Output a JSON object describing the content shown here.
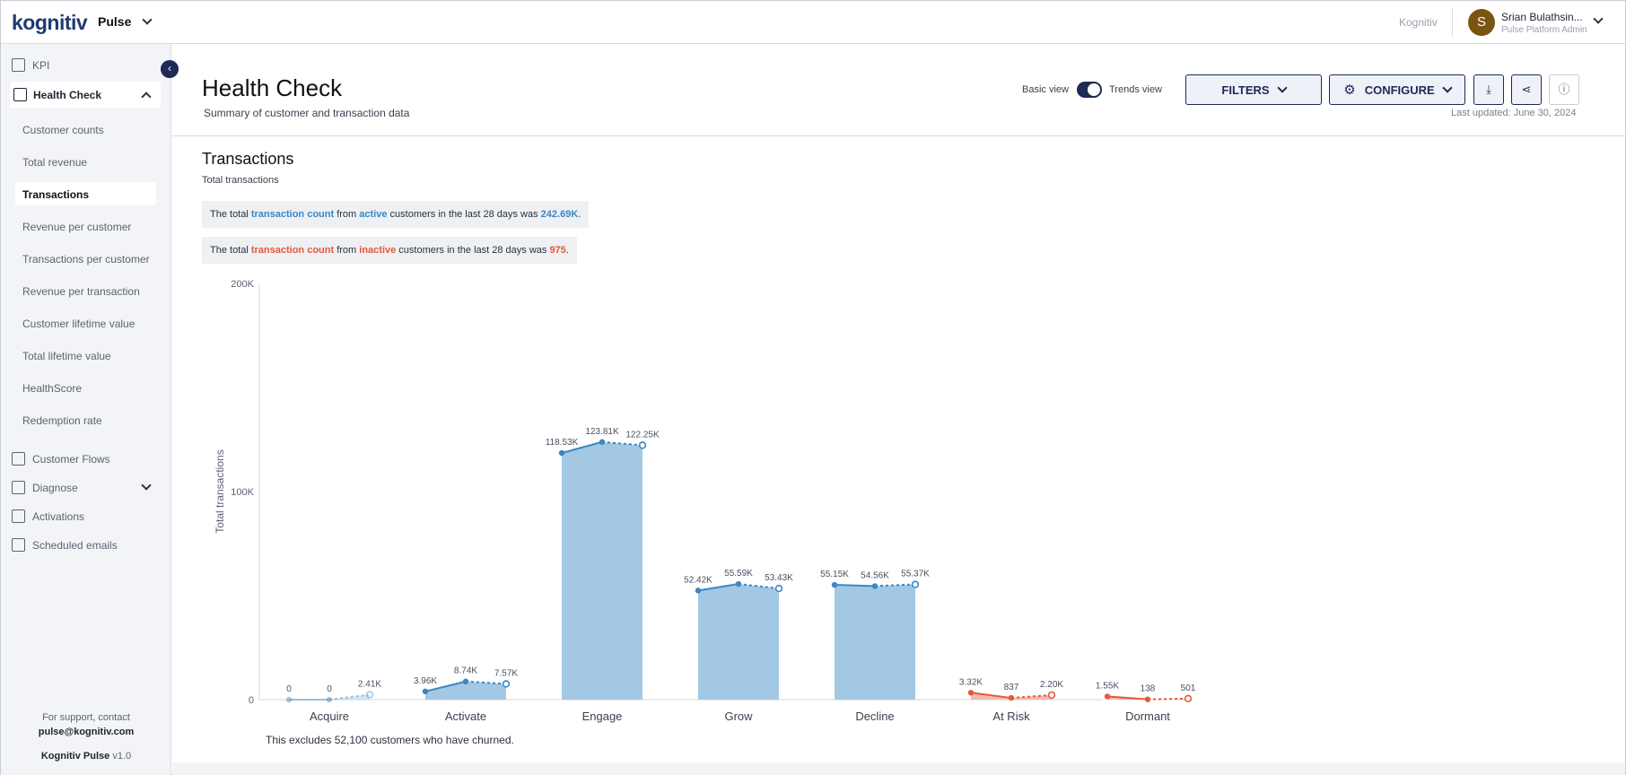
{
  "app": {
    "logo_text": "kognitiv",
    "product": "Pulse",
    "org_link": "Kognitiv",
    "user": {
      "initial": "S",
      "name": "Srian Bulathsin...",
      "role": "Pulse Platform Admin"
    }
  },
  "sidebar": {
    "collapse_icon": "‹",
    "kpi": "KPI",
    "health_check": "Health Check",
    "sub_items": [
      "Customer counts",
      "Total revenue",
      "Transactions",
      "Revenue per customer",
      "Transactions per customer",
      "Revenue per transaction",
      "Customer lifetime value",
      "Total lifetime value",
      "HealthScore",
      "Redemption rate"
    ],
    "customer_flows": "Customer Flows",
    "diagnose": "Diagnose",
    "activations": "Activations",
    "scheduled_emails": "Scheduled emails",
    "support_line": "For support, contact",
    "support_email": "pulse@kognitiv.com",
    "product_name": "Kognitiv Pulse",
    "version": "v1.0"
  },
  "header": {
    "title": "Health Check",
    "subtitle": "Summary of customer and transaction data",
    "basic_view": "Basic view",
    "trends_view": "Trends view",
    "filters": "FILTERS",
    "configure": "CONFIGURE",
    "download_icon": "⤓",
    "share_icon": "⋖",
    "info_icon": "ⓘ",
    "last_updated": "Last updated: June 30, 2024"
  },
  "section": {
    "title": "Transactions",
    "subtitle": "Total transactions",
    "active_summary": {
      "pre": "The total ",
      "metric": "transaction count",
      "mid1": " from ",
      "segment": "active",
      "mid2": " customers in the last 28 days was ",
      "value": "242.69K",
      "end": "."
    },
    "inactive_summary": {
      "pre": "The total ",
      "metric": "transaction count",
      "mid1": " from ",
      "segment": "inactive",
      "mid2": " customers in the last 28 days was ",
      "value": "975",
      "end": "."
    },
    "footnote": "This excludes 52,100 customers who have churned."
  },
  "colors": {
    "active_bar": "#a3c8e4",
    "active_line": "#3b87c4",
    "inactive_bar": "#f6b9a9",
    "inactive_line": "#e5593b",
    "navy": "#1d2a55"
  },
  "chart_data": {
    "type": "bar",
    "ylabel": "Total transactions",
    "ylim": [
      0,
      200000
    ],
    "y_ticks": [
      {
        "v": 0,
        "t": "0"
      },
      {
        "v": 100000,
        "t": "100K"
      },
      {
        "v": 200000,
        "t": "200K"
      }
    ],
    "categories": [
      "Acquire",
      "Activate",
      "Engage",
      "Grow",
      "Decline",
      "At Risk",
      "Dormant"
    ],
    "groups": [
      "active",
      "active",
      "active",
      "active",
      "active",
      "inactive",
      "inactive"
    ],
    "trend": [
      {
        "values": [
          0,
          0,
          2410
        ],
        "labels": [
          "0",
          "0",
          "2.41K"
        ]
      },
      {
        "values": [
          3960,
          8740,
          7570
        ],
        "labels": [
          "3.96K",
          "8.74K",
          "7.57K"
        ]
      },
      {
        "values": [
          118530,
          123810,
          122250
        ],
        "labels": [
          "118.53K",
          "123.81K",
          "122.25K"
        ]
      },
      {
        "values": [
          52420,
          55590,
          53430
        ],
        "labels": [
          "52.42K",
          "55.59K",
          "53.43K"
        ]
      },
      {
        "values": [
          55150,
          54560,
          55370
        ],
        "labels": [
          "55.15K",
          "54.56K",
          "55.37K"
        ]
      },
      {
        "values": [
          3320,
          837,
          2200
        ],
        "labels": [
          "3.32K",
          "837",
          "2.20K"
        ]
      },
      {
        "values": [
          1550,
          138,
          501
        ],
        "labels": [
          "1.55K",
          "138",
          "501"
        ]
      }
    ]
  }
}
